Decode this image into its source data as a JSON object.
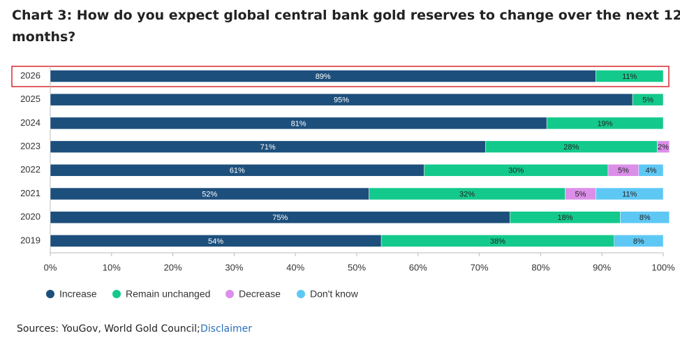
{
  "chart_data": {
    "type": "stacked_bar_horizontal",
    "title": "Chart 3: How do you expect global central bank gold reserves to change over the next 12 months?",
    "categories": [
      "2026",
      "2025",
      "2024",
      "2023",
      "2022",
      "2021",
      "2020",
      "2019"
    ],
    "series": [
      {
        "name": "Increase",
        "color": "#1d4f7c",
        "label_color": "#ffffff",
        "values": [
          89,
          95,
          81,
          71,
          61,
          52,
          75,
          54
        ],
        "value_labels": [
          "89%",
          "95%",
          "81%",
          "71%",
          "61%",
          "52%",
          "75%",
          "54%"
        ]
      },
      {
        "name": "Remain unchanged",
        "color": "#14c98c",
        "label_color": "#222222",
        "values": [
          11,
          5,
          19,
          28,
          30,
          32,
          18,
          38
        ],
        "value_labels": [
          "11%",
          "5%",
          "19%",
          "28%",
          "30%",
          "32%",
          "18%",
          "38%"
        ]
      },
      {
        "name": "Decrease",
        "color": "#db8fe9",
        "label_color": "#222222",
        "values": [
          null,
          null,
          null,
          2,
          5,
          5,
          null,
          null
        ],
        "value_labels": [
          null,
          null,
          null,
          "2%",
          "5%",
          "5%",
          null,
          null
        ]
      },
      {
        "name": "Don't know",
        "color": "#5ec8f4",
        "label_color": "#222222",
        "values": [
          null,
          null,
          null,
          null,
          4,
          11,
          8,
          8
        ],
        "value_labels": [
          null,
          null,
          null,
          null,
          "4%",
          "11%",
          "8%",
          "8%"
        ]
      }
    ],
    "xlim": [
      0,
      100
    ],
    "xticks": [
      {
        "value": 0,
        "label": "0%"
      },
      {
        "value": 10,
        "label": "10%"
      },
      {
        "value": 20,
        "label": "20%"
      },
      {
        "value": 30,
        "label": "30%"
      },
      {
        "value": 40,
        "label": "40%"
      },
      {
        "value": 50,
        "label": "50%"
      },
      {
        "value": 60,
        "label": "60%"
      },
      {
        "value": 70,
        "label": "70%"
      },
      {
        "value": 80,
        "label": "80%"
      },
      {
        "value": 90,
        "label": "90%"
      },
      {
        "value": 100,
        "label": "100%"
      }
    ],
    "source": "Sources: YouGov, World Gold Council;",
    "source_link": "Disclaimer"
  }
}
